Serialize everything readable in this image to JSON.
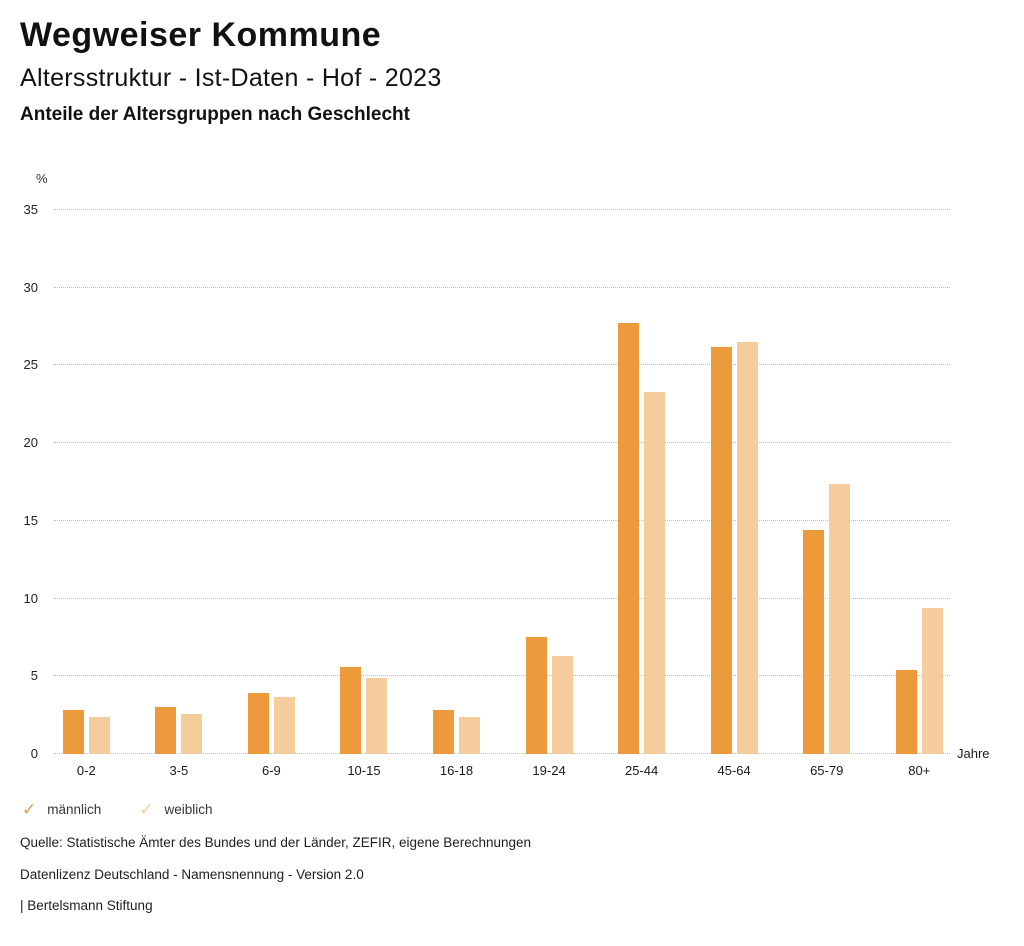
{
  "header": {
    "title": "Wegweiser Kommune",
    "subtitle": "Altersstruktur - Ist-Daten - Hof - 2023",
    "chart_heading": "Anteile der Altersgruppen nach Geschlecht"
  },
  "chart_data": {
    "type": "bar",
    "title": "Anteile der Altersgruppen nach Geschlecht",
    "xlabel": "Jahre",
    "ylabel": "%",
    "ylim": [
      0,
      35
    ],
    "y_ticks": [
      35,
      30,
      25,
      20,
      15,
      10,
      5,
      0
    ],
    "grid": "horizontal dotted",
    "legend_position": "bottom-left",
    "categories": [
      "0-2",
      "3-5",
      "6-9",
      "10-15",
      "16-18",
      "19-24",
      "25-44",
      "45-64",
      "65-79",
      "80+"
    ],
    "series": [
      {
        "name": "männlich",
        "color": "#EC9A3B",
        "values": [
          2.8,
          3.0,
          3.9,
          5.6,
          2.8,
          7.5,
          27.7,
          26.2,
          14.4,
          5.4
        ]
      },
      {
        "name": "weiblich",
        "color": "#F5CD9D",
        "values": [
          2.4,
          2.6,
          3.7,
          4.9,
          2.4,
          6.3,
          23.3,
          26.5,
          17.4,
          9.4
        ]
      }
    ]
  },
  "legend": {
    "check_icon": "✓"
  },
  "footer": {
    "source": "Quelle: Statistische Ämter des Bundes und der Länder, ZEFIR, eigene Berechnungen",
    "license": "Datenlizenz Deutschland - Namensnennung - Version 2.0",
    "attribution": "| Bertelsmann Stiftung"
  }
}
